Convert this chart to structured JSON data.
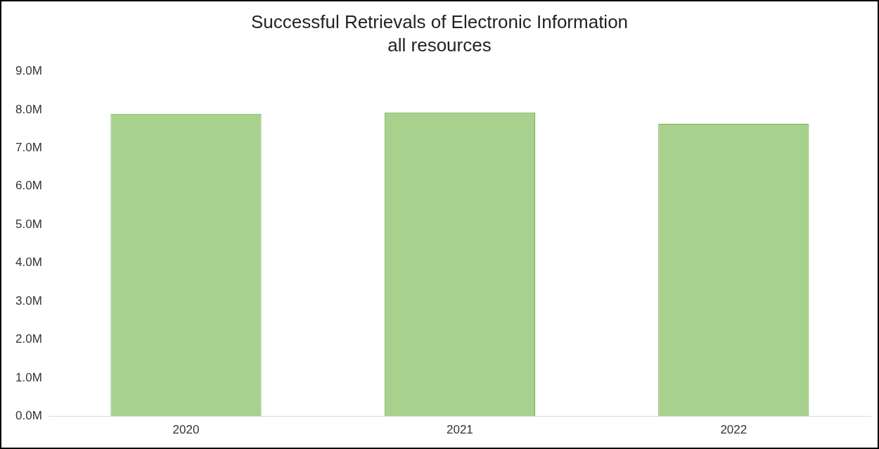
{
  "chart_data": {
    "type": "bar",
    "title": "Successful Retrievals of Electronic Information",
    "subtitle": "all resources",
    "categories": [
      "2020",
      "2021",
      "2022"
    ],
    "values": [
      7.89,
      7.93,
      7.63
    ],
    "color": "#a9d18e",
    "ylim": [
      0,
      9
    ],
    "yticks": [
      {
        "value": 0,
        "label": "0.0M"
      },
      {
        "value": 1,
        "label": "1.0M"
      },
      {
        "value": 2,
        "label": "2.0M"
      },
      {
        "value": 3,
        "label": "3.0M"
      },
      {
        "value": 4,
        "label": "4.0M"
      },
      {
        "value": 5,
        "label": "5.0M"
      },
      {
        "value": 6,
        "label": "6.0M"
      },
      {
        "value": 7,
        "label": "7.0M"
      },
      {
        "value": 8,
        "label": "8.0M"
      },
      {
        "value": 9,
        "label": "9.0M"
      }
    ],
    "grid": false,
    "legend": false
  }
}
